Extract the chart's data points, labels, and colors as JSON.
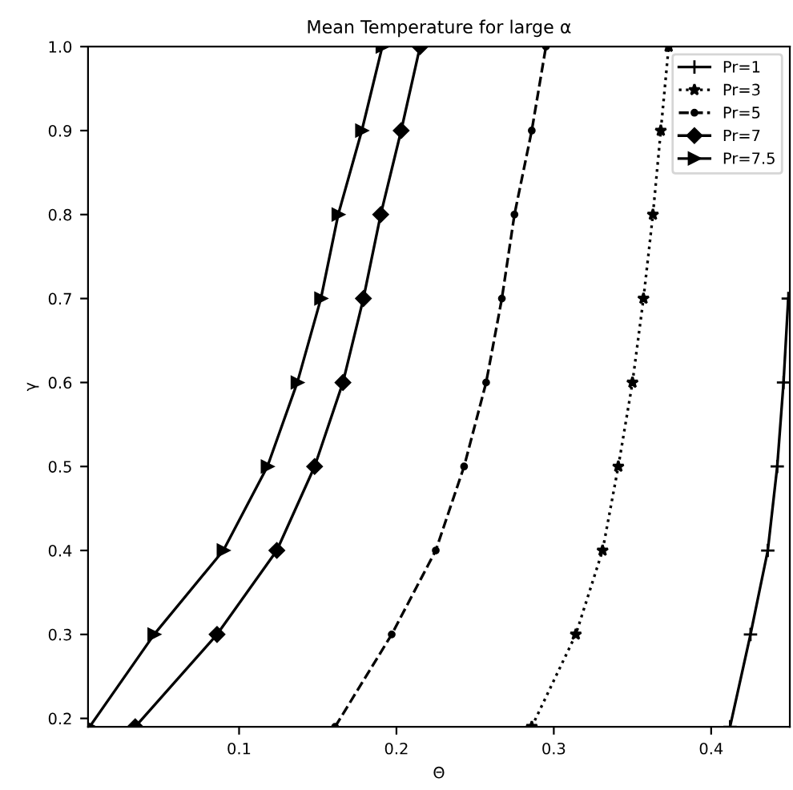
{
  "chart_data": {
    "type": "line",
    "title": "Mean Temperature for large α",
    "xlabel": "Θ",
    "ylabel": "γ",
    "xlim": [
      0.004,
      0.45
    ],
    "ylim": [
      0.19,
      1.0
    ],
    "xticks": [
      0.1,
      0.2,
      0.3,
      0.4
    ],
    "yticks": [
      0.2,
      0.3,
      0.4,
      0.5,
      0.6,
      0.7,
      0.8,
      0.9,
      {
        "value": 1.0,
        "label": "1.0"
      }
    ],
    "grid": false,
    "legend": "top right",
    "series": [
      {
        "name": "Pr=1",
        "color": "#000000",
        "marker": "cross",
        "line_style": "solid",
        "x": [
          0.412,
          0.425,
          0.436,
          0.442,
          0.446,
          0.449
        ],
        "values": [
          0.19,
          0.3,
          0.4,
          0.5,
          0.6,
          0.7
        ]
      },
      {
        "name": "Pr=3",
        "color": "#000000",
        "marker": "star",
        "line_style": "dotted",
        "x": [
          0.286,
          0.314,
          0.331,
          0.341,
          0.35,
          0.357,
          0.363,
          0.368,
          0.373
        ],
        "values": [
          0.19,
          0.3,
          0.4,
          0.5,
          0.6,
          0.7,
          0.8,
          0.9,
          1.0
        ]
      },
      {
        "name": "Pr=5",
        "color": "#000000",
        "marker": "circle",
        "line_style": "dashed",
        "x": [
          0.161,
          0.197,
          0.225,
          0.243,
          0.257,
          0.267,
          0.275,
          0.286,
          0.295
        ],
        "values": [
          0.19,
          0.3,
          0.4,
          0.5,
          0.6,
          0.7,
          0.8,
          0.9,
          1.0
        ]
      },
      {
        "name": "Pr=7",
        "color": "#000000",
        "marker": "diamond",
        "line_style": "solid",
        "x": [
          0.034,
          0.086,
          0.124,
          0.148,
          0.166,
          0.179,
          0.19,
          0.203,
          0.215
        ],
        "values": [
          0.19,
          0.3,
          0.4,
          0.5,
          0.6,
          0.7,
          0.8,
          0.9,
          1.0
        ]
      },
      {
        "name": "Pr=7.5",
        "color": "#000000",
        "marker": "triangle",
        "line_style": "solid",
        "x": [
          0.005,
          0.046,
          0.09,
          0.118,
          0.137,
          0.152,
          0.163,
          0.178,
          0.191
        ],
        "values": [
          0.19,
          0.3,
          0.4,
          0.5,
          0.6,
          0.7,
          0.8,
          0.9,
          1.0
        ]
      }
    ]
  }
}
